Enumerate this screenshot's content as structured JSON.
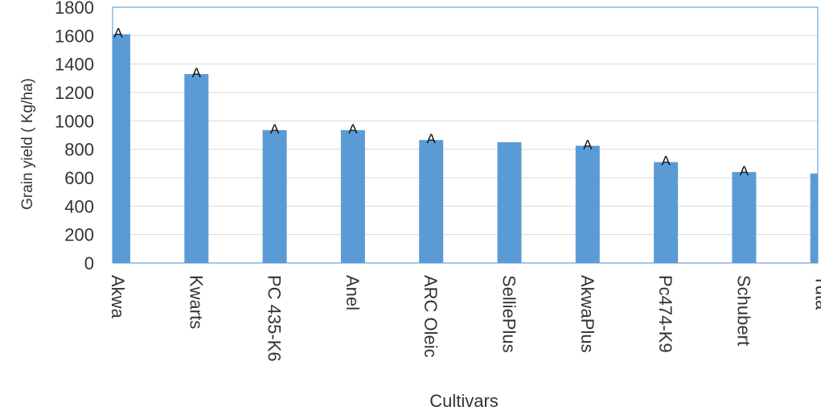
{
  "chart_data": {
    "type": "bar",
    "title": "",
    "xlabel": "Cultivars",
    "ylabel": "Grain yield ( Kg/ha)",
    "ylim": [
      0,
      1800
    ],
    "yticks": [
      0,
      200,
      400,
      600,
      800,
      1000,
      1200,
      1400,
      1600,
      1800
    ],
    "categories": [
      "Akwa",
      "Kwarts",
      "PC 435-K6",
      "Anel",
      "ARC Oleic",
      "SelliePlus",
      "AkwaPlus",
      "Pc474-K9",
      "Schubert",
      "Tuta"
    ],
    "values": [
      1610,
      1330,
      935,
      935,
      865,
      850,
      825,
      710,
      640,
      630
    ],
    "data_labels": [
      "A",
      "A",
      "A",
      "A",
      "A",
      "",
      "A",
      "A",
      "A",
      ""
    ],
    "bar_color": "#5b9bd5",
    "plot_border_color": "#4a90d9",
    "gridline_color": "#d9d9d9",
    "grid": true,
    "legend": "none"
  }
}
